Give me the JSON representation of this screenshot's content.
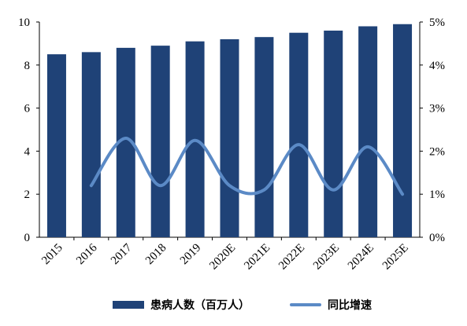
{
  "chart_data": {
    "type": "bar+line",
    "categories": [
      "2015",
      "2016",
      "2017",
      "2018",
      "2019",
      "2020E",
      "2021E",
      "2022E",
      "2023E",
      "2024E",
      "2025E"
    ],
    "series": [
      {
        "name": "患病人数（百万人）",
        "type": "bar",
        "axis": "left",
        "color": "#1f4277",
        "values": [
          8.5,
          8.6,
          8.8,
          8.9,
          9.1,
          9.2,
          9.3,
          9.5,
          9.6,
          9.8,
          9.9
        ]
      },
      {
        "name": "同比增速",
        "type": "line",
        "axis": "right",
        "color": "#5b8ac6",
        "values": [
          null,
          1.2,
          2.3,
          1.2,
          2.25,
          1.2,
          1.1,
          2.15,
          1.1,
          2.1,
          1.0
        ]
      }
    ],
    "left_axis": {
      "ylim": [
        0,
        10
      ],
      "ticks": [
        "0",
        "2",
        "4",
        "6",
        "8",
        "10"
      ]
    },
    "right_axis": {
      "ylim": [
        0,
        5
      ],
      "ticks": [
        "0%",
        "1%",
        "2%",
        "3%",
        "4%",
        "5%"
      ]
    },
    "legend_position": "bottom",
    "grid": false
  }
}
